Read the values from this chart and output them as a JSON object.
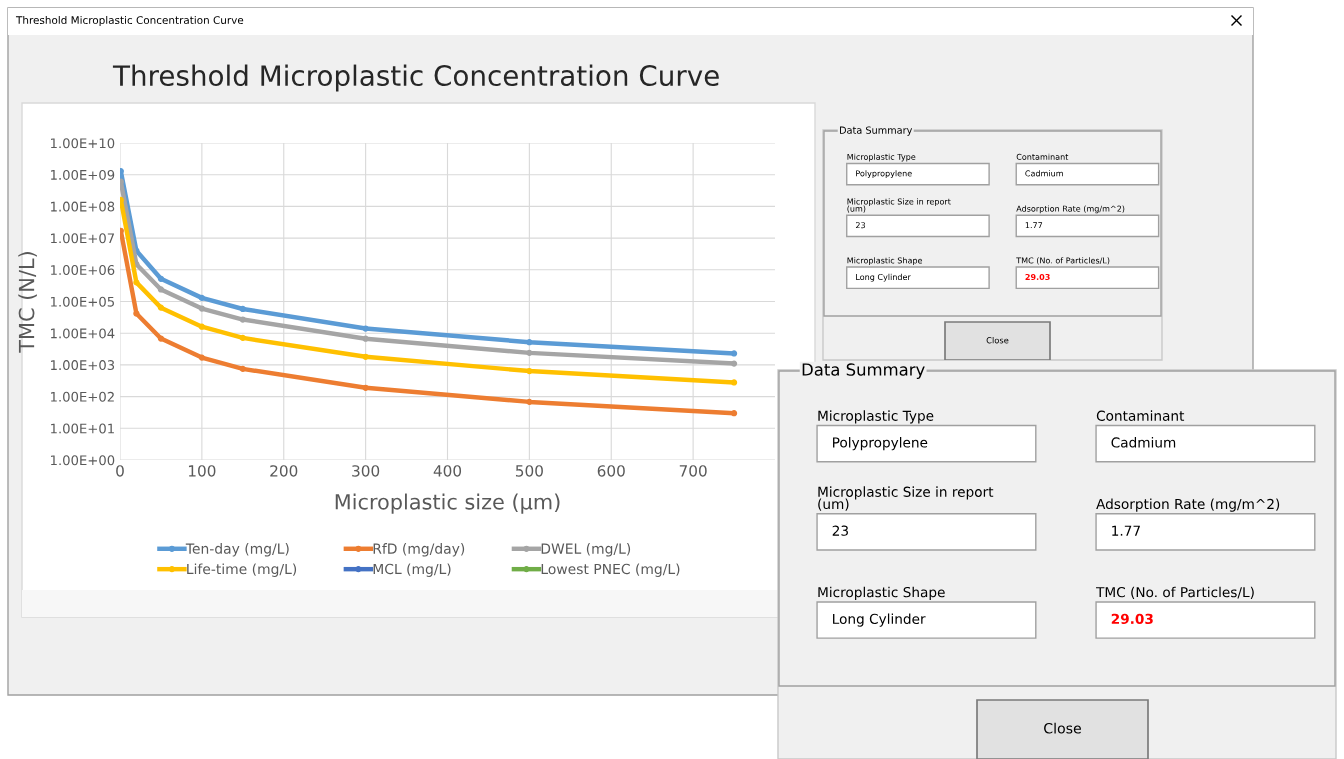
{
  "chart_data": [
    {
      "type": "line",
      "title": "Threshold Microplastic Concentration Curve",
      "xlabel": "Microplastic size (µm)",
      "ylabel": "TMC (N/L)",
      "annotations": [
        "Threshold Microplastic Concentration Curve"
      ],
      "x": [
        1,
        20,
        50,
        100,
        150,
        300,
        500,
        750
      ],
      "series": [
        {
          "name": "Ten-day (mg/L)",
          "color": "#5b9bd5",
          "values": [
            1300000000,
            4000000,
            520000,
            130000,
            58000,
            14000,
            5200,
            2300
          ]
        },
        {
          "name": "RfD (mg/day)",
          "color": "#ed7d31",
          "values": [
            17000000,
            42000,
            6800,
            1700,
            750,
            190,
            68,
            30
          ]
        },
        {
          "name": "DWEL (mg/L)",
          "color": "#a5a5a5",
          "values": [
            600000000,
            1500000,
            240000,
            60000,
            27000,
            6700,
            2400,
            1100
          ]
        },
        {
          "name": "Life-time (mg/L)",
          "color": "#ffc000",
          "values": [
            160000000,
            400000,
            64000,
            16000,
            7100,
            1800,
            640,
            280
          ]
        },
        {
          "name": "MCL (mg/L)",
          "color": "#4472c4",
          "values": [
            null,
            null,
            null,
            null,
            null,
            null,
            null,
            null
          ]
        },
        {
          "name": "Lowest PNEC (mg/L)",
          "color": "#70ad47",
          "values": [
            null,
            null,
            null,
            null,
            null,
            null,
            null,
            null
          ]
        }
      ],
      "xlim": [
        0,
        800
      ],
      "xticks": [
        0,
        100,
        200,
        300,
        400,
        500,
        600,
        700
      ],
      "log": "y",
      "ylim": [
        1,
        10000000000
      ],
      "yticks": [
        {
          "value": 1,
          "label": "1.00E+00"
        },
        {
          "value": 10,
          "label": "1.00E+01"
        },
        {
          "value": 100,
          "label": "1.00E+02"
        },
        {
          "value": 1000,
          "label": "1.00E+03"
        },
        {
          "value": 10000,
          "label": "1.00E+04"
        },
        {
          "value": 100000,
          "label": "1.00E+05"
        },
        {
          "value": 1000000,
          "label": "1.00E+06"
        },
        {
          "value": 10000000,
          "label": "1.00E+07"
        },
        {
          "value": 100000000,
          "label": "1.00E+08"
        },
        {
          "value": 1000000000,
          "label": "1.00E+09"
        },
        {
          "value": 10000000000,
          "label": "1.00E+10"
        }
      ],
      "grid": true,
      "legend": "bottom",
      "marker": "circle",
      "line_style": "solid"
    },
    {
      "type": "other",
      "title": "Data Summary",
      "annotations": [
        "Microplastic Type",
        "Polypropylene",
        "Contaminant",
        "Cadmium",
        "Microplastic Size in report\n(um)",
        "23",
        "Adsorption Rate (mg/m^2)",
        "1.77",
        "Microplastic Shape",
        "Long Cylinder",
        "TMC (No. of Particles/L)",
        "29.03",
        "Close"
      ],
      "colors": [
        "#000000",
        "#000000",
        "#000000",
        "#000000",
        "#000000",
        "#000000",
        "#000000",
        "#000000",
        "#000000",
        "#000000",
        "#000000",
        "#ff0000",
        "#000000"
      ]
    },
    {
      "type": "other",
      "title": "Data Summary",
      "annotations": [
        "Microplastic Type",
        "Polypropylene",
        "Contaminant",
        "Cadmium",
        "Microplastic Size in report\n(um)",
        "23",
        "Adsorption Rate (mg/m^2)",
        "1.77",
        "Microplastic Shape",
        "Long Cylinder",
        "TMC (No. of Particles/L)",
        "29.03",
        "Close"
      ],
      "colors": [
        "#000000",
        "#000000",
        "#000000",
        "#000000",
        "#000000",
        "#000000",
        "#000000",
        "#000000",
        "#000000",
        "#000000",
        "#000000",
        "#ff0000",
        "#000000"
      ]
    }
  ]
}
